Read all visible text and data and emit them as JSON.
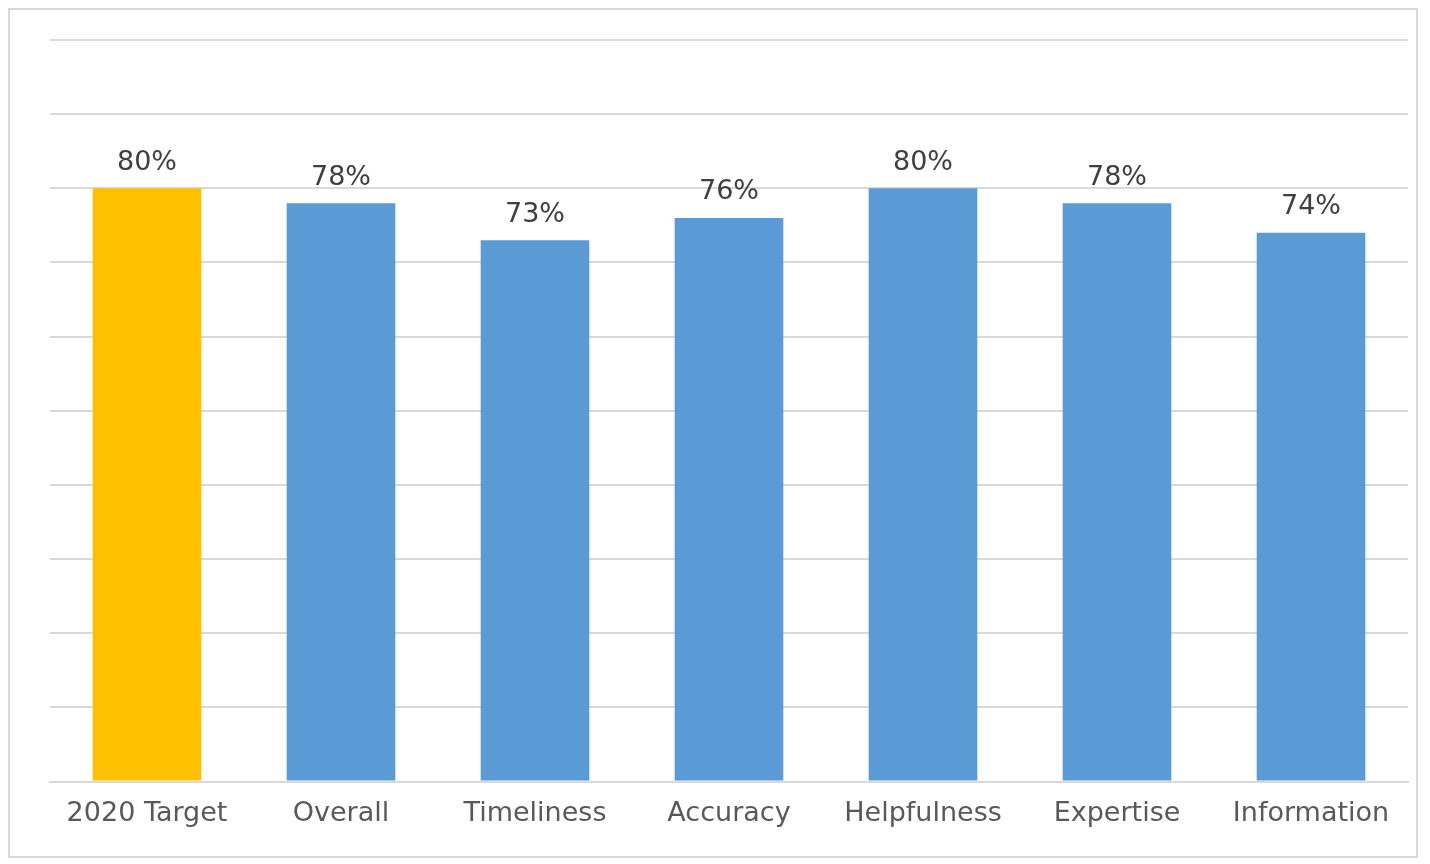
{
  "chart_data": {
    "type": "bar",
    "categories": [
      "2020 Target",
      "Overall",
      "Timeliness",
      "Accuracy",
      "Helpfulness",
      "Expertise",
      "Information"
    ],
    "values": [
      80,
      78,
      73,
      76,
      80,
      78,
      74
    ],
    "colors": [
      "#ffc000",
      "#5b9bd5",
      "#5b9bd5",
      "#5b9bd5",
      "#5b9bd5",
      "#5b9bd5",
      "#5b9bd5"
    ],
    "value_labels": [
      "80%",
      "78%",
      "73%",
      "76%",
      "80%",
      "78%",
      "74%"
    ],
    "ylim": [
      0,
      100
    ],
    "yticks": [
      {
        "value": 0,
        "label": null
      },
      {
        "value": 10,
        "label": null
      },
      {
        "value": 20,
        "label": null
      },
      {
        "value": 30,
        "label": null
      },
      {
        "value": 40,
        "label": null
      },
      {
        "value": 50,
        "label": null
      },
      {
        "value": 60,
        "label": null
      },
      {
        "value": 70,
        "label": null
      },
      {
        "value": 80,
        "label": null
      },
      {
        "value": 90,
        "label": null
      },
      {
        "value": 100,
        "label": null
      }
    ],
    "tick_labels": "x",
    "grid": "y",
    "legend": false
  }
}
